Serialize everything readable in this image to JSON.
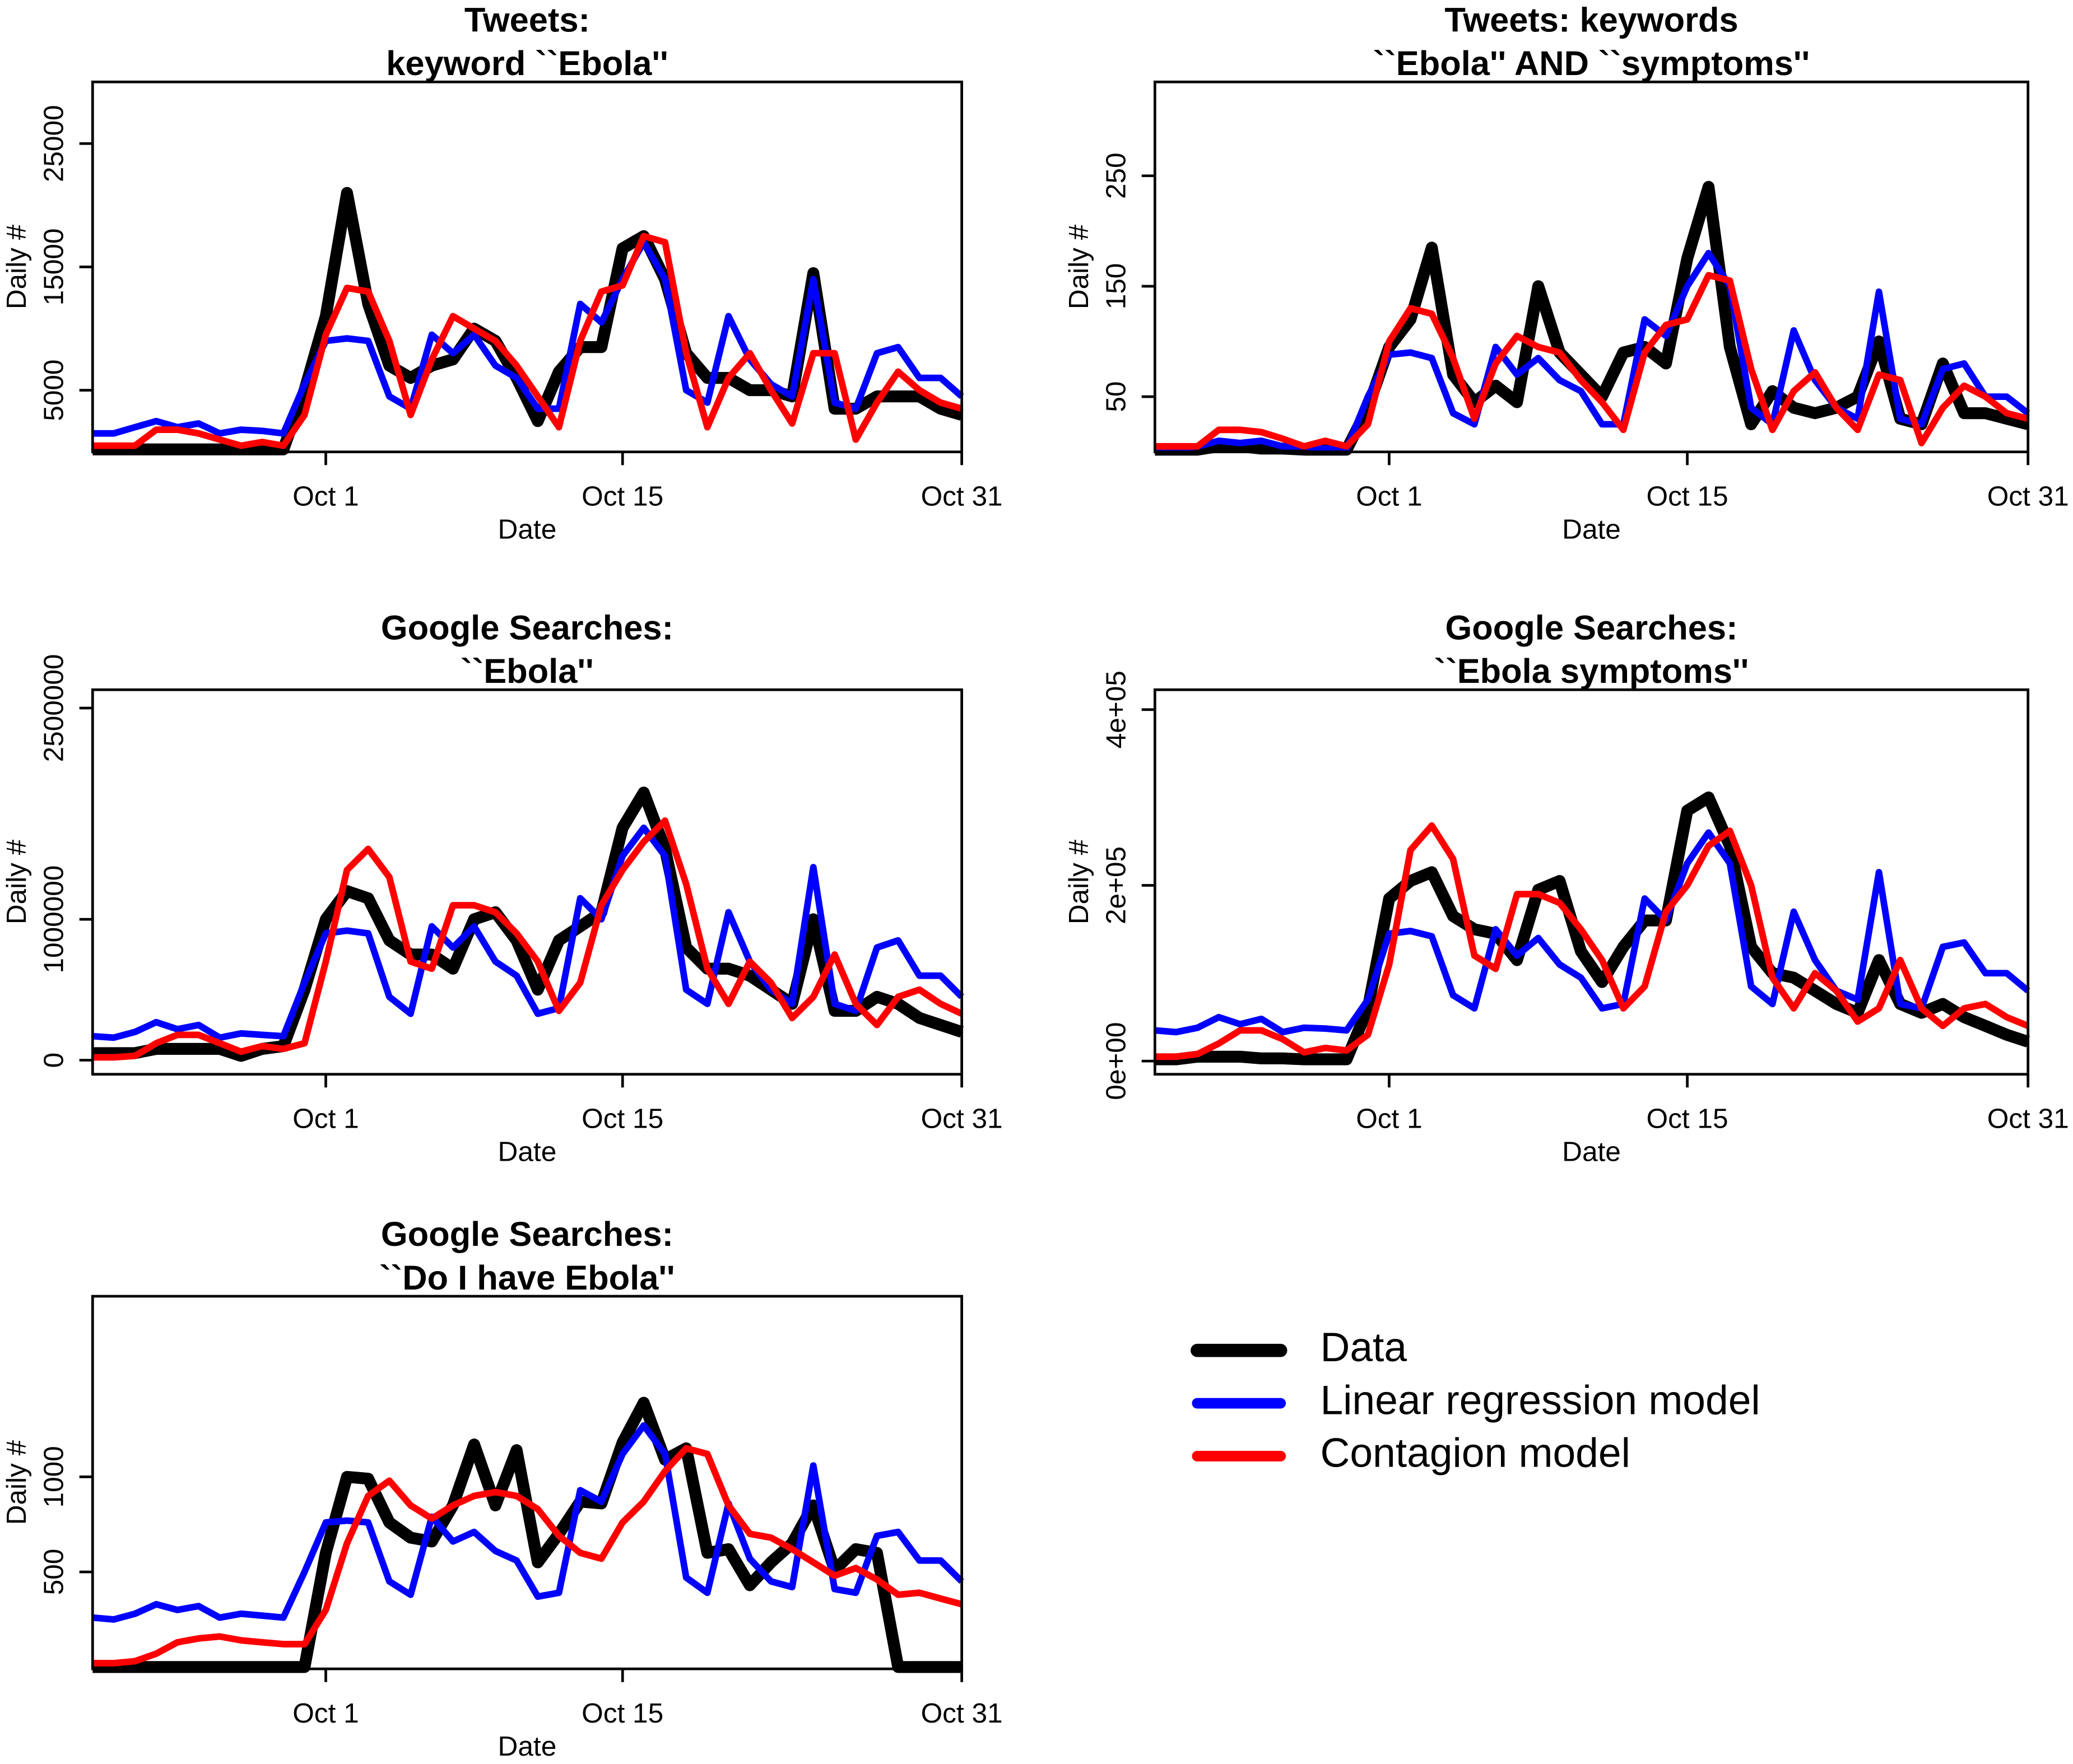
{
  "chart_data": [
    {
      "type": "line",
      "title": [
        "Tweets:",
        "keyword ``Ebola''"
      ],
      "xlabel": "Date",
      "ylabel": "Daily #",
      "categories": [
        null,
        null,
        null,
        null,
        null,
        null,
        null,
        null,
        null,
        null,
        null,
        "Oct 1",
        null,
        null,
        null,
        null,
        null,
        null,
        null,
        null,
        null,
        null,
        null,
        null,
        null,
        "Oct 15",
        null,
        null,
        null,
        null,
        null,
        null,
        null,
        null,
        null,
        null,
        null,
        null,
        null,
        null,
        null,
        "Oct 31"
      ],
      "ylim": [
        0,
        30000
      ],
      "yticks": [
        5000,
        15000,
        25000
      ],
      "series": [
        {
          "name": "Data",
          "color": "#000000",
          "values": [
            200,
            200,
            200,
            200,
            200,
            200,
            200,
            200,
            200,
            200,
            5000,
            11000,
            21000,
            12000,
            7000,
            6000,
            7000,
            7500,
            10000,
            9000,
            6000,
            2500,
            6500,
            8500,
            8500,
            16500,
            17500,
            14000,
            8000,
            6000,
            6000,
            5000,
            5000,
            4500,
            14500,
            3500,
            3500,
            4500,
            4500,
            4500,
            3500,
            3000
          ]
        },
        {
          "name": "Linear regression model",
          "color": "#0000ff",
          "values": [
            1500,
            1500,
            2000,
            2500,
            2000,
            2300,
            1500,
            1800,
            1700,
            1500,
            5500,
            9000,
            9200,
            9000,
            4500,
            3500,
            9500,
            8000,
            9500,
            7000,
            6000,
            3500,
            3500,
            12000,
            10500,
            14000,
            17000,
            14000,
            5000,
            4000,
            11000,
            7500,
            5500,
            4500,
            14000,
            4000,
            3500,
            8000,
            8500,
            6000,
            6000,
            4500
          ]
        },
        {
          "name": "Contagion model",
          "color": "#ff0000",
          "values": [
            500,
            500,
            500,
            1800,
            1800,
            1500,
            1000,
            500,
            800,
            500,
            3000,
            9500,
            13300,
            13000,
            9000,
            3000,
            7500,
            11000,
            10000,
            9000,
            7000,
            4500,
            2000,
            9000,
            13000,
            13500,
            17500,
            17000,
            8000,
            2000,
            6000,
            8000,
            5000,
            2300,
            8000,
            8000,
            1000,
            4000,
            6500,
            5000,
            4000,
            3500
          ]
        }
      ]
    },
    {
      "type": "line",
      "title": [
        "Tweets: keywords",
        "``Ebola'' AND ``symptoms''"
      ],
      "xlabel": "Date",
      "ylabel": "Daily #",
      "categories": [
        null,
        null,
        null,
        null,
        null,
        null,
        null,
        null,
        null,
        null,
        null,
        "Oct 1",
        null,
        null,
        null,
        null,
        null,
        null,
        null,
        null,
        null,
        null,
        null,
        null,
        null,
        "Oct 15",
        null,
        null,
        null,
        null,
        null,
        null,
        null,
        null,
        null,
        null,
        null,
        null,
        null,
        null,
        null,
        "Oct 31"
      ],
      "ylim": [
        0,
        335
      ],
      "yticks": [
        50,
        150,
        250
      ],
      "series": [
        {
          "name": "Data",
          "color": "#000000",
          "values": [
            2,
            2,
            2,
            5,
            5,
            3,
            3,
            2,
            2,
            2,
            40,
            95,
            120,
            185,
            70,
            45,
            60,
            45,
            150,
            90,
            70,
            50,
            90,
            95,
            80,
            175,
            240,
            95,
            25,
            55,
            40,
            35,
            40,
            50,
            100,
            30,
            25,
            80,
            35,
            35,
            30,
            25
          ]
        },
        {
          "name": "Linear regression model",
          "color": "#0000ff",
          "values": [
            2,
            2,
            5,
            10,
            8,
            10,
            5,
            5,
            3,
            3,
            50,
            88,
            90,
            85,
            35,
            25,
            95,
            70,
            85,
            65,
            55,
            25,
            25,
            120,
            105,
            150,
            180,
            150,
            40,
            25,
            110,
            65,
            40,
            30,
            145,
            30,
            25,
            75,
            80,
            50,
            50,
            35
          ]
        },
        {
          "name": "Contagion model",
          "color": "#ff0000",
          "values": [
            5,
            5,
            5,
            20,
            20,
            18,
            12,
            5,
            10,
            5,
            25,
            100,
            130,
            125,
            85,
            30,
            80,
            105,
            95,
            90,
            65,
            45,
            20,
            90,
            115,
            120,
            160,
            155,
            75,
            20,
            55,
            72,
            40,
            20,
            70,
            65,
            8,
            40,
            60,
            50,
            35,
            30
          ]
        }
      ]
    },
    {
      "type": "line",
      "title": [
        "Google Searches:",
        "``Ebola''"
      ],
      "xlabel": "Date",
      "ylabel": "Daily #",
      "categories": [
        null,
        null,
        null,
        null,
        null,
        null,
        null,
        null,
        null,
        null,
        null,
        "Oct 1",
        null,
        null,
        null,
        null,
        null,
        null,
        null,
        null,
        null,
        null,
        null,
        null,
        null,
        "Oct 15",
        null,
        null,
        null,
        null,
        null,
        null,
        null,
        null,
        null,
        null,
        null,
        null,
        null,
        null,
        null,
        "Oct 31"
      ],
      "ylim": [
        -100000,
        2630000
      ],
      "yticks": [
        0,
        1000000,
        2500000
      ],
      "series": [
        {
          "name": "Data",
          "color": "#000000",
          "values": [
            50000,
            50000,
            50000,
            80000,
            80000,
            80000,
            80000,
            30000,
            80000,
            100000,
            500000,
            1000000,
            1200000,
            1150000,
            850000,
            750000,
            750000,
            650000,
            1000000,
            1050000,
            850000,
            500000,
            850000,
            950000,
            1050000,
            1650000,
            1900000,
            1500000,
            800000,
            650000,
            650000,
            600000,
            500000,
            400000,
            1000000,
            350000,
            350000,
            450000,
            400000,
            300000,
            250000,
            200000
          ]
        },
        {
          "name": "Linear regression model",
          "color": "#0000ff",
          "values": [
            170000,
            160000,
            200000,
            270000,
            220000,
            250000,
            160000,
            190000,
            180000,
            170000,
            550000,
            900000,
            920000,
            900000,
            450000,
            330000,
            950000,
            800000,
            950000,
            700000,
            600000,
            330000,
            370000,
            1150000,
            1000000,
            1450000,
            1650000,
            1450000,
            500000,
            400000,
            1050000,
            700000,
            500000,
            400000,
            1370000,
            400000,
            350000,
            800000,
            850000,
            600000,
            600000,
            450000
          ]
        },
        {
          "name": "Contagion model",
          "color": "#ff0000",
          "values": [
            20000,
            20000,
            30000,
            120000,
            180000,
            180000,
            120000,
            60000,
            100000,
            80000,
            120000,
            700000,
            1350000,
            1500000,
            1300000,
            700000,
            650000,
            1100000,
            1100000,
            1050000,
            900000,
            700000,
            350000,
            550000,
            1100000,
            1350000,
            1550000,
            1700000,
            1250000,
            650000,
            400000,
            700000,
            550000,
            300000,
            450000,
            750000,
            400000,
            250000,
            450000,
            500000,
            400000,
            330000
          ]
        }
      ]
    },
    {
      "type": "line",
      "title": [
        "Google Searches:",
        "``Ebola symptoms''"
      ],
      "xlabel": "Date",
      "ylabel": "Daily #",
      "categories": [
        null,
        null,
        null,
        null,
        null,
        null,
        null,
        null,
        null,
        null,
        null,
        "Oct 1",
        null,
        null,
        null,
        null,
        null,
        null,
        null,
        null,
        null,
        null,
        null,
        null,
        null,
        "Oct 15",
        null,
        null,
        null,
        null,
        null,
        null,
        null,
        null,
        null,
        null,
        null,
        null,
        null,
        null,
        null,
        "Oct 31"
      ],
      "ylim": [
        -15000,
        422600
      ],
      "yticks": [
        {
          "value": 0,
          "label": "0e+00"
        },
        {
          "value": 200000,
          "label": "2e+05"
        },
        {
          "value": 400000,
          "label": "4e+05"
        }
      ],
      "series": [
        {
          "name": "Data",
          "color": "#000000",
          "values": [
            2000,
            2000,
            5000,
            5000,
            5000,
            3000,
            3000,
            2000,
            2000,
            2000,
            60000,
            185000,
            205000,
            215000,
            165000,
            150000,
            145000,
            115000,
            195000,
            205000,
            125000,
            90000,
            130000,
            160000,
            160000,
            285000,
            300000,
            245000,
            130000,
            100000,
            95000,
            80000,
            65000,
            55000,
            115000,
            65000,
            55000,
            65000,
            50000,
            40000,
            30000,
            22000
          ]
        },
        {
          "name": "Linear regression model",
          "color": "#0000ff",
          "values": [
            35000,
            33000,
            38000,
            50000,
            42000,
            48000,
            33000,
            38000,
            37000,
            35000,
            70000,
            145000,
            148000,
            142000,
            75000,
            60000,
            150000,
            120000,
            140000,
            110000,
            95000,
            60000,
            65000,
            185000,
            160000,
            225000,
            260000,
            225000,
            85000,
            65000,
            170000,
            115000,
            80000,
            70000,
            215000,
            65000,
            60000,
            130000,
            135000,
            100000,
            100000,
            80000
          ]
        },
        {
          "name": "Contagion model",
          "color": "#ff0000",
          "values": [
            5000,
            5000,
            8000,
            20000,
            35000,
            35000,
            25000,
            10000,
            15000,
            12000,
            30000,
            110000,
            240000,
            268000,
            230000,
            120000,
            105000,
            190000,
            190000,
            180000,
            150000,
            115000,
            60000,
            85000,
            170000,
            200000,
            245000,
            262000,
            200000,
            95000,
            60000,
            100000,
            80000,
            45000,
            60000,
            115000,
            60000,
            40000,
            60000,
            65000,
            50000,
            40000
          ]
        }
      ]
    },
    {
      "type": "line",
      "title": [
        "Google Searches:",
        "``Do I have Ebola''"
      ],
      "xlabel": "Date",
      "ylabel": "Daily #",
      "categories": [
        null,
        null,
        null,
        null,
        null,
        null,
        null,
        null,
        null,
        null,
        null,
        "Oct 1",
        null,
        null,
        null,
        null,
        null,
        null,
        null,
        null,
        null,
        null,
        null,
        null,
        null,
        "Oct 15",
        null,
        null,
        null,
        null,
        null,
        null,
        null,
        null,
        null,
        null,
        null,
        null,
        null,
        null,
        null,
        "Oct 31"
      ],
      "ylim": [
        -10,
        1950
      ],
      "yticks": [
        500,
        1000
      ],
      "series": [
        {
          "name": "Data",
          "color": "#000000",
          "values": [
            0,
            0,
            0,
            0,
            0,
            0,
            0,
            0,
            0,
            0,
            0,
            600,
            1000,
            990,
            760,
            680,
            660,
            850,
            1170,
            850,
            1140,
            550,
            700,
            870,
            860,
            1180,
            1390,
            1090,
            1150,
            600,
            620,
            430,
            550,
            650,
            850,
            510,
            620,
            600,
            0,
            0,
            0,
            0
          ]
        },
        {
          "name": "Linear regression model",
          "color": "#0000ff",
          "values": [
            260,
            250,
            280,
            330,
            300,
            320,
            260,
            280,
            270,
            260,
            500,
            760,
            770,
            760,
            450,
            380,
            790,
            660,
            710,
            610,
            560,
            370,
            390,
            930,
            870,
            1120,
            1270,
            1120,
            470,
            390,
            860,
            570,
            450,
            420,
            1060,
            410,
            390,
            690,
            710,
            560,
            560,
            450
          ]
        },
        {
          "name": "Contagion model",
          "color": "#ff0000",
          "values": [
            20,
            20,
            30,
            70,
            130,
            150,
            160,
            140,
            130,
            120,
            120,
            300,
            650,
            900,
            980,
            850,
            780,
            850,
            900,
            920,
            900,
            830,
            690,
            600,
            570,
            760,
            870,
            1030,
            1150,
            1120,
            850,
            700,
            680,
            620,
            550,
            480,
            520,
            460,
            380,
            390,
            360,
            330
          ]
        }
      ]
    }
  ]
}
